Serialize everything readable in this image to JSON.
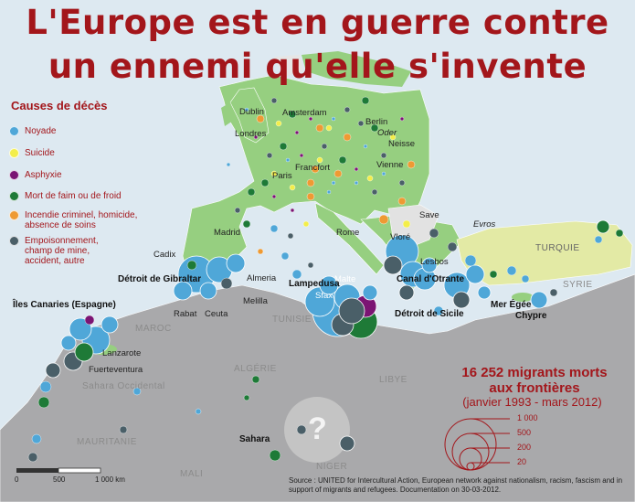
{
  "title": {
    "line1": "L'Europe est en guerre contre",
    "line2": "un ennemi qu'elle s'invente"
  },
  "legend": {
    "title": "Causes de décès",
    "items": [
      {
        "label": "Noyade",
        "color": "#4fa7d8"
      },
      {
        "label": "Suicide",
        "color": "#f3ee4a"
      },
      {
        "label": "Asphyxie",
        "color": "#7b1473"
      },
      {
        "label": "Mort de faim ou de froid",
        "color": "#1e7a37"
      },
      {
        "label": "Incendie criminel, homicide,\nabsence de soins",
        "color": "#ee9a33"
      },
      {
        "label": "Empoisonnement,\nchamp de mine,\naccident, autre",
        "color": "#4a5f68"
      }
    ]
  },
  "cities": [
    "Dublin",
    "Amsterdam",
    "Berlin",
    "Oder",
    "Londres",
    "Neisse",
    "Francfort",
    "Paris",
    "Vienne",
    "Save",
    "Evros",
    "Madrid",
    "Rome",
    "Vloré",
    "Cadix",
    "Lesbos",
    "Almeria",
    "Malte",
    "Melilla",
    "Sfax",
    "Rabat",
    "Ceuta",
    "Lanzarote",
    "Fuerteventura",
    "Sahara Occidental"
  ],
  "bold_labels": [
    "Détroit de Gibraltar",
    "Lampedusa",
    "Canal d'Otrante",
    "Mer Égée",
    "Détroit de Sicile",
    "Chypre",
    "Îles Canaries (Espagne)",
    "Sahara"
  ],
  "countries": [
    "TURQUIE",
    "SYRIE",
    "MAROC",
    "TUNISIE",
    "ALGÉRIE",
    "LIBYE",
    "MAURITANIE",
    "MALI",
    "NIGER"
  ],
  "question_mark": "?",
  "stats": {
    "headline1": "16 252 migrants morts",
    "headline2": "aux frontières",
    "period": "(janvier 1993 - mars 2012)"
  },
  "size_legend": [
    "1 000",
    "500",
    "200",
    "20"
  ],
  "scale": [
    "0",
    "500",
    "1 000 km"
  ],
  "source": "Source : UNITED for Intercultural Action, European network against nationalism, racism, fascism and in support of migrants and refugees. Documentation on 30-03-2012."
}
